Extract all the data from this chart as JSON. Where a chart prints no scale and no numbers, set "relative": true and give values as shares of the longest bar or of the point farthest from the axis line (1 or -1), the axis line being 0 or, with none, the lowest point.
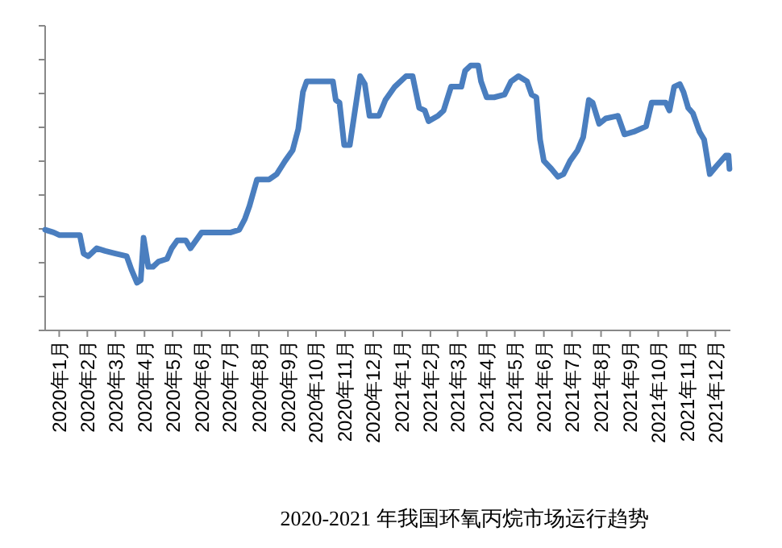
{
  "chart_data": {
    "type": "line",
    "title": "2020-2021 年我国环氧丙烷市场运行趋势",
    "relative": true,
    "line_style": "solid",
    "xlim": [
      "2020-01-01",
      "2022-01-01"
    ],
    "xticks": [
      {
        "value": "2020-01-16",
        "label": "2020年1月"
      },
      {
        "value": "2020-02-15",
        "label": "2020年2月"
      },
      {
        "value": "2020-03-16",
        "label": "2020年3月"
      },
      {
        "value": "2020-04-16",
        "label": "2020年4月"
      },
      {
        "value": "2020-05-16",
        "label": "2020年5月"
      },
      {
        "value": "2020-06-16",
        "label": "2020年6月"
      },
      {
        "value": "2020-07-16",
        "label": "2020年7月"
      },
      {
        "value": "2020-08-16",
        "label": "2020年8月"
      },
      {
        "value": "2020-09-16",
        "label": "2020年9月"
      },
      {
        "value": "2020-10-16",
        "label": "2020年10月"
      },
      {
        "value": "2020-11-16",
        "label": "2020年11月"
      },
      {
        "value": "2020-12-16",
        "label": "2020年12月"
      },
      {
        "value": "2021-01-16",
        "label": "2021年1月"
      },
      {
        "value": "2021-02-15",
        "label": "2021年2月"
      },
      {
        "value": "2021-03-16",
        "label": "2021年3月"
      },
      {
        "value": "2021-04-16",
        "label": "2021年4月"
      },
      {
        "value": "2021-05-16",
        "label": "2021年5月"
      },
      {
        "value": "2021-06-16",
        "label": "2021年6月"
      },
      {
        "value": "2021-07-16",
        "label": "2021年7月"
      },
      {
        "value": "2021-08-16",
        "label": "2021年8月"
      },
      {
        "value": "2021-09-16",
        "label": "2021年9月"
      },
      {
        "value": "2021-10-16",
        "label": "2021年10月"
      },
      {
        "value": "2021-11-16",
        "label": "2021年11月"
      },
      {
        "value": "2021-12-16",
        "label": "2021年12月"
      }
    ],
    "series": [
      {
        "color": "#4a7ebf",
        "x": [
          "2020-01-01",
          "2020-01-10",
          "2020-01-16",
          "2020-02-07",
          "2020-02-11",
          "2020-02-16",
          "2020-02-25",
          "2020-03-05",
          "2020-03-16",
          "2020-03-28",
          "2020-04-02",
          "2020-04-08",
          "2020-04-12",
          "2020-04-15",
          "2020-04-20",
          "2020-04-25",
          "2020-05-01",
          "2020-05-10",
          "2020-05-15",
          "2020-05-21",
          "2020-05-30",
          "2020-06-04",
          "2020-06-16",
          "2020-07-17",
          "2020-07-26",
          "2020-08-01",
          "2020-08-06",
          "2020-08-14",
          "2020-08-27",
          "2020-09-04",
          "2020-09-13",
          "2020-09-21",
          "2020-09-27",
          "2020-10-02",
          "2020-10-06",
          "2020-11-03",
          "2020-11-06",
          "2020-11-10",
          "2020-11-15",
          "2020-11-21",
          "2020-12-02",
          "2020-12-07",
          "2020-12-12",
          "2020-12-22",
          "2020-12-29",
          "2021-01-08",
          "2021-01-20",
          "2021-01-27",
          "2021-02-03",
          "2021-02-09",
          "2021-02-13",
          "2021-02-23",
          "2021-03-01",
          "2021-03-09",
          "2021-03-20",
          "2021-03-24",
          "2021-03-30",
          "2021-04-07",
          "2021-04-10",
          "2021-04-16",
          "2021-04-24",
          "2021-05-05",
          "2021-05-12",
          "2021-05-20",
          "2021-05-29",
          "2021-06-03",
          "2021-06-08",
          "2021-06-12",
          "2021-06-16",
          "2021-06-24",
          "2021-07-01",
          "2021-07-07",
          "2021-07-14",
          "2021-07-22",
          "2021-07-28",
          "2021-08-03",
          "2021-08-07",
          "2021-08-14",
          "2021-08-21",
          "2021-09-03",
          "2021-09-10",
          "2021-09-20",
          "2021-10-03",
          "2021-10-09",
          "2021-10-24",
          "2021-10-28",
          "2021-11-02",
          "2021-11-08",
          "2021-11-12",
          "2021-11-17",
          "2021-11-22",
          "2021-11-29",
          "2021-12-04",
          "2021-12-10",
          "2021-12-17",
          "2021-12-27",
          "2021-12-30",
          "2021-12-31"
        ],
        "values": [
          0.38,
          0.37,
          0.36,
          0.36,
          0.29,
          0.28,
          0.31,
          0.3,
          0.29,
          0.28,
          0.23,
          0.18,
          0.19,
          0.35,
          0.24,
          0.24,
          0.26,
          0.27,
          0.31,
          0.34,
          0.34,
          0.31,
          0.37,
          0.37,
          0.38,
          0.42,
          0.47,
          0.57,
          0.57,
          0.59,
          0.64,
          0.68,
          0.76,
          0.9,
          0.94,
          0.94,
          0.87,
          0.86,
          0.7,
          0.7,
          0.96,
          0.93,
          0.81,
          0.81,
          0.87,
          0.92,
          0.96,
          0.96,
          0.84,
          0.83,
          0.79,
          0.81,
          0.83,
          0.92,
          0.92,
          0.98,
          1,
          1,
          0.94,
          0.88,
          0.88,
          0.89,
          0.94,
          0.96,
          0.94,
          0.89,
          0.88,
          0.72,
          0.64,
          0.61,
          0.58,
          0.59,
          0.64,
          0.68,
          0.73,
          0.87,
          0.86,
          0.78,
          0.8,
          0.81,
          0.74,
          0.75,
          0.77,
          0.86,
          0.86,
          0.83,
          0.92,
          0.93,
          0.9,
          0.84,
          0.82,
          0.75,
          0.72,
          0.59,
          0.62,
          0.66,
          0.66,
          0.61
        ]
      }
    ]
  }
}
